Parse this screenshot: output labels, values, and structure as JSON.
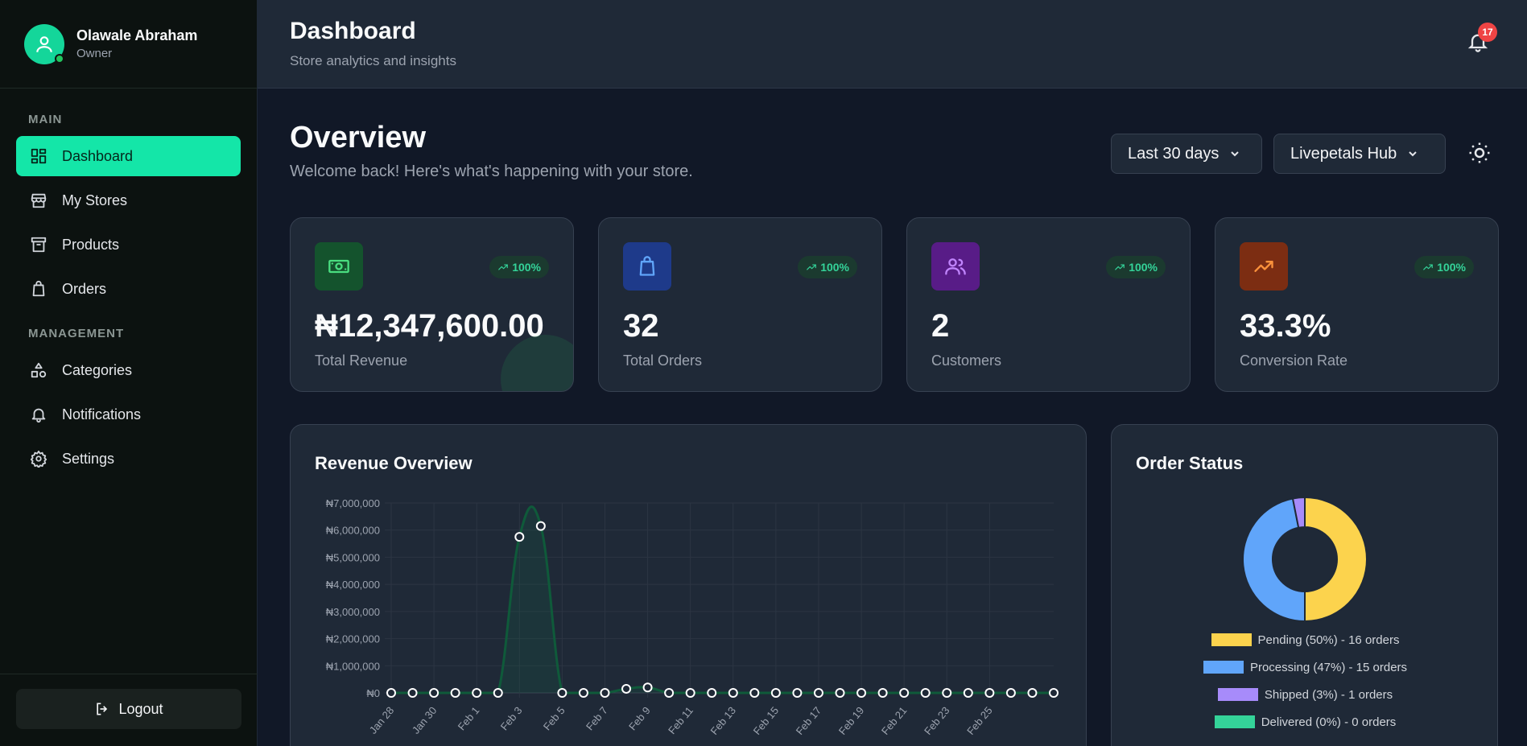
{
  "user": {
    "name": "Olawale Abraham",
    "role": "Owner"
  },
  "sidebar": {
    "main_label": "MAIN",
    "management_label": "MANAGEMENT",
    "main_items": [
      {
        "label": "Dashboard",
        "icon": "dashboard-icon",
        "active": true
      },
      {
        "label": "My Stores",
        "icon": "store-icon"
      },
      {
        "label": "Products",
        "icon": "archive-box-icon"
      },
      {
        "label": "Orders",
        "icon": "shopping-bag-icon"
      }
    ],
    "management_items": [
      {
        "label": "Categories",
        "icon": "shapes-icon"
      },
      {
        "label": "Notifications",
        "icon": "bell-icon"
      },
      {
        "label": "Settings",
        "icon": "gear-icon"
      }
    ],
    "logout_label": "Logout"
  },
  "header": {
    "title": "Dashboard",
    "subtitle": "Store analytics and insights",
    "notification_count": "17"
  },
  "overview": {
    "title": "Overview",
    "subtitle": "Welcome back! Here's what's happening with your store.",
    "range_select": "Last 30 days",
    "store_select": "Livepetals Hub"
  },
  "cards": [
    {
      "value": "₦12,347,600.00",
      "label": "Total Revenue",
      "trend": "100%",
      "icon": "money-icon",
      "bg": "#14532d",
      "fg": "#4ade80"
    },
    {
      "value": "32",
      "label": "Total Orders",
      "trend": "100%",
      "icon": "shopping-bag-icon",
      "bg": "#1e3a8a",
      "fg": "#60a5fa"
    },
    {
      "value": "2",
      "label": "Customers",
      "trend": "100%",
      "icon": "users-icon",
      "bg": "#581c87",
      "fg": "#c084fc"
    },
    {
      "value": "33.3%",
      "label": "Conversion Rate",
      "trend": "100%",
      "icon": "trend-up-icon",
      "bg": "#7c2d12",
      "fg": "#fb923c"
    }
  ],
  "revenue_panel": {
    "title": "Revenue Overview"
  },
  "status_panel": {
    "title": "Order Status"
  },
  "chart_data": [
    {
      "type": "line",
      "title": "Revenue Overview",
      "y_ticks": [
        "₦0",
        "₦1,000,000",
        "₦2,000,000",
        "₦3,000,000",
        "₦4,000,000",
        "₦5,000,000",
        "₦6,000,000",
        "₦7,000,000"
      ],
      "ylim": [
        0,
        7000000
      ],
      "x_tick_labels": [
        "Jan 28",
        "Jan 30",
        "Feb 1",
        "Feb 3",
        "Feb 5",
        "Feb 7",
        "Feb 9",
        "Feb 11",
        "Feb 13",
        "Feb 15",
        "Feb 17",
        "Feb 19",
        "Feb 21",
        "Feb 23",
        "Feb 25"
      ],
      "x": [
        "Jan 28",
        "Jan 29",
        "Jan 30",
        "Jan 31",
        "Feb 1",
        "Feb 2",
        "Feb 3",
        "Feb 4",
        "Feb 5",
        "Feb 6",
        "Feb 7",
        "Feb 8",
        "Feb 9",
        "Feb 10",
        "Feb 11",
        "Feb 12",
        "Feb 13",
        "Feb 14",
        "Feb 15",
        "Feb 16",
        "Feb 17",
        "Feb 18",
        "Feb 19",
        "Feb 20",
        "Feb 21",
        "Feb 22",
        "Feb 23",
        "Feb 24",
        "Feb 25",
        "Feb 26",
        "Feb 27",
        "Feb 28"
      ],
      "series": [
        {
          "values": [
            0,
            0,
            0,
            0,
            0,
            0,
            5750000,
            6150000,
            0,
            0,
            0,
            150000,
            200000,
            0,
            0,
            0,
            0,
            0,
            0,
            0,
            0,
            0,
            0,
            0,
            0,
            0,
            0,
            0,
            0,
            0,
            0,
            0
          ]
        }
      ],
      "line_color": "#0f5a3a",
      "grid": true
    },
    {
      "type": "pie",
      "title": "Order Status",
      "slices": [
        {
          "label": "Pending (50%) - 16 orders",
          "value": 16,
          "color": "#fcd34d"
        },
        {
          "label": "Processing (47%) - 15 orders",
          "value": 15,
          "color": "#60a5fa"
        },
        {
          "label": "Shipped (3%) - 1 orders",
          "value": 1,
          "color": "#a78bfa"
        },
        {
          "label": "Delivered (0%) - 0 orders",
          "value": 0,
          "color": "#34d399"
        }
      ]
    }
  ]
}
